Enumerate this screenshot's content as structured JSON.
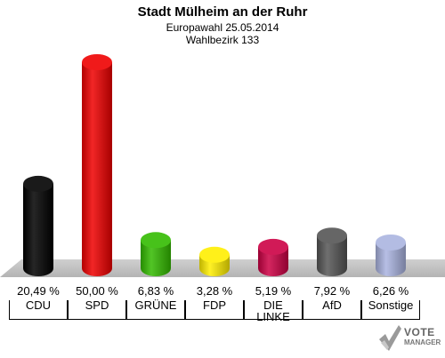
{
  "header": {
    "title": "Stadt Mülheim an der Ruhr",
    "subtitle": "Europawahl 25.05.2014",
    "district": "Wahlbezirk 133"
  },
  "chart_data": {
    "type": "bar",
    "categories": [
      "CDU",
      "SPD",
      "GRÜNE",
      "FDP",
      "DIE LINKE",
      "AfD",
      "Sonstige"
    ],
    "values": [
      20.49,
      50.0,
      6.83,
      3.28,
      5.19,
      7.92,
      6.26
    ],
    "value_labels": [
      "20,49 %",
      "50,00 %",
      "6,83 %",
      "3,28 %",
      "5,19 %",
      "7,92 %",
      "6,26 %"
    ],
    "colors": [
      "#000000",
      "#ee0000",
      "#33bb00",
      "#ffee00",
      "#cc0044",
      "#555555",
      "#aab4e0"
    ],
    "ylim": [
      0,
      50
    ],
    "grid": false,
    "legend": "none"
  },
  "logo": {
    "line1": "VOTE",
    "line2": "MANAGER",
    "icon": "vote-manager-check-icon"
  }
}
